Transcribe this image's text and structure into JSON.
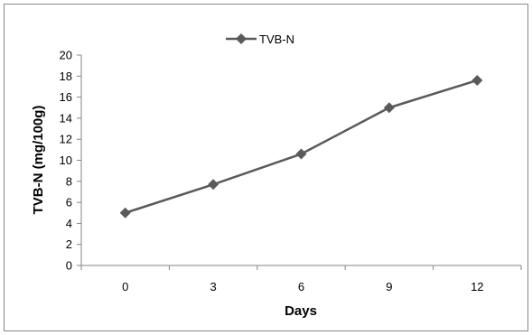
{
  "chart_data": {
    "type": "line",
    "title": "",
    "xlabel": "Days",
    "ylabel": "TVB-N (mg/100g)",
    "categories": [
      "0",
      "3",
      "6",
      "9",
      "12"
    ],
    "series": [
      {
        "name": "TVB-N",
        "values": [
          5.0,
          7.7,
          10.6,
          15.0,
          17.6
        ],
        "color": "#5a5a5a",
        "marker": "diamond"
      }
    ],
    "ylim": [
      0,
      20
    ],
    "yticks": [
      "0",
      "2",
      "4",
      "6",
      "8",
      "10",
      "12",
      "14",
      "16",
      "18",
      "20"
    ],
    "grid": false,
    "legend": "top-left"
  }
}
